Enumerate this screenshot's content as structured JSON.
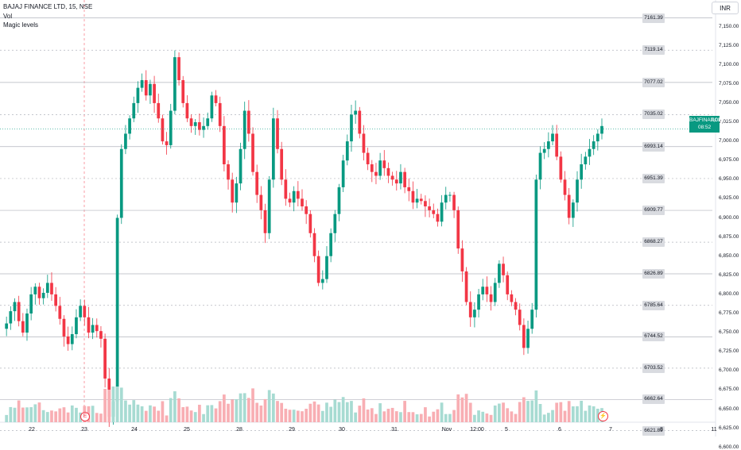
{
  "legend": {
    "symbol_line": "BAJAJ FINANCE LTD, 15, NSE",
    "indicators": [
      "Vol",
      "Magic levels"
    ]
  },
  "currency_button": "INR",
  "last_price": {
    "symbol": "BAJFINANCE",
    "value": "7,016.00",
    "countdown": "08:52"
  },
  "event_marker": "E",
  "colors": {
    "up": "#089981",
    "down": "#f23645",
    "vol_up": "#a7dbd2",
    "vol_down": "#f8aeb3",
    "level_line": "#b2b5be",
    "session_line": "#f23645"
  },
  "chart_data": {
    "type": "candlestick",
    "title": "",
    "y_axis": {
      "range": [
        6597,
        7175
      ],
      "ticks": [
        "7,150.00",
        "7,125.00",
        "7,100.00",
        "7,075.00",
        "7,050.00",
        "7,025.00",
        "7,000.00",
        "6,975.00",
        "6,950.00",
        "6,925.00",
        "6,900.00",
        "6,875.00",
        "6,850.00",
        "6,825.00",
        "6,800.00",
        "6,775.00",
        "6,750.00",
        "6,725.00",
        "6,700.00",
        "6,675.00",
        "6,650.00",
        "6,625.00",
        "6,600.00"
      ]
    },
    "x_axis": {
      "ticks": [
        "22",
        "23",
        "24",
        "25",
        "28",
        "29",
        "30",
        "31",
        "Nov",
        "12:00",
        "5",
        "6",
        "7",
        "8",
        "11"
      ]
    },
    "levels": [
      {
        "label": "7161.39",
        "value": 7161.39,
        "style": "solid"
      },
      {
        "label": "7119.14",
        "value": 7119.14,
        "style": "dotted"
      },
      {
        "label": "7077.02",
        "value": 7077.02,
        "style": "solid"
      },
      {
        "label": "7035.02",
        "value": 7035.02,
        "style": "dotted"
      },
      {
        "label": "6993.14",
        "value": 6993.14,
        "style": "solid"
      },
      {
        "label": "6951.39",
        "value": 6951.39,
        "style": "dotted"
      },
      {
        "label": "6909.77",
        "value": 6909.77,
        "style": "solid"
      },
      {
        "label": "6868.27",
        "value": 6868.27,
        "style": "dotted"
      },
      {
        "label": "6826.89",
        "value": 6826.89,
        "style": "solid"
      },
      {
        "label": "6785.64",
        "value": 6785.64,
        "style": "dotted"
      },
      {
        "label": "6744.52",
        "value": 6744.52,
        "style": "solid"
      },
      {
        "label": "6703.52",
        "value": 6703.52,
        "style": "dotted"
      },
      {
        "label": "6662.64",
        "value": 6662.64,
        "style": "solid"
      },
      {
        "label": "6621.89",
        "value": 6621.89,
        "style": "dotted"
      }
    ],
    "last_price_value": 7016.0,
    "close_path": [
      6755,
      6762,
      6778,
      6790,
      6765,
      6750,
      6775,
      6800,
      6810,
      6795,
      6802,
      6815,
      6800,
      6785,
      6768,
      6745,
      6735,
      6748,
      6770,
      6785,
      6770,
      6750,
      6760,
      6752,
      6742,
      6690,
      6640,
      6660,
      6900,
      6990,
      7010,
      7030,
      7050,
      7070,
      7080,
      7060,
      7075,
      7050,
      7030,
      7000,
      6995,
      7040,
      7110,
      7080,
      7050,
      7030,
      7020,
      7025,
      7015,
      7020,
      7030,
      7060,
      7050,
      7020,
      6970,
      6950,
      6920,
      6945,
      6990,
      7040,
      7010,
      6960,
      6930,
      6910,
      6880,
      6950,
      7030,
      6990,
      6950,
      6925,
      6920,
      6935,
      6925,
      6915,
      6905,
      6880,
      6850,
      6815,
      6820,
      6850,
      6880,
      6905,
      6940,
      6975,
      7000,
      7035,
      7040,
      7010,
      6985,
      6970,
      6960,
      6955,
      6975,
      6965,
      6955,
      6950,
      6945,
      6960,
      6940,
      6935,
      6920,
      6925,
      6922,
      6915,
      6910,
      6905,
      6895,
      6920,
      6930,
      6930,
      6910,
      6860,
      6830,
      6790,
      6770,
      6780,
      6800,
      6810,
      6800,
      6790,
      6815,
      6840,
      6825,
      6800,
      6790,
      6780,
      6760,
      6730,
      6755,
      6780,
      6950,
      6985,
      6990,
      7000,
      7010,
      6980,
      6950,
      6930,
      6900,
      6920,
      6950,
      6970,
      6980,
      6990,
      7000,
      7010,
      7020
    ]
  }
}
